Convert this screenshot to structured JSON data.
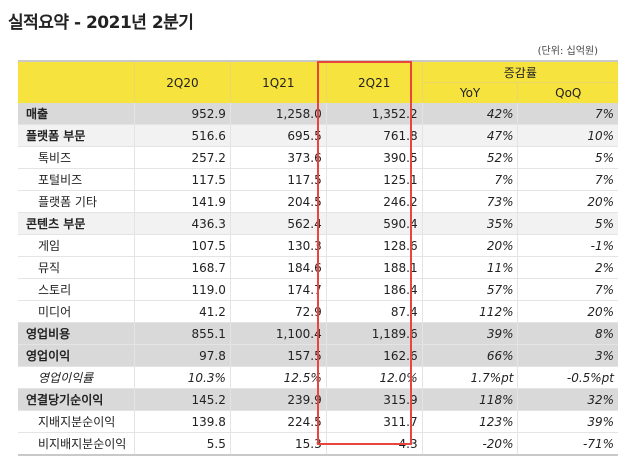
{
  "title": "실적요약 - 2021년 2분기",
  "unit": "(단위: 십억원)",
  "headers": {
    "c1": "2Q20",
    "c2": "1Q21",
    "c3": "2Q21",
    "growth": "증감률",
    "yoy": "YoY",
    "qoq": "QoQ"
  },
  "rows": [
    {
      "label": "매출",
      "v": [
        "952.9",
        "1,258.0",
        "1,352.2",
        "42%",
        "7%"
      ]
    },
    {
      "label": "플랫폼 부문",
      "v": [
        "516.6",
        "695.5",
        "761.8",
        "47%",
        "10%"
      ]
    },
    {
      "label": "톡비즈",
      "v": [
        "257.2",
        "373.6",
        "390.5",
        "52%",
        "5%"
      ]
    },
    {
      "label": "포털비즈",
      "v": [
        "117.5",
        "117.5",
        "125.1",
        "7%",
        "7%"
      ]
    },
    {
      "label": "플랫폼 기타",
      "v": [
        "141.9",
        "204.5",
        "246.2",
        "73%",
        "20%"
      ]
    },
    {
      "label": "콘텐츠 부문",
      "v": [
        "436.3",
        "562.4",
        "590.4",
        "35%",
        "5%"
      ]
    },
    {
      "label": "게임",
      "v": [
        "107.5",
        "130.3",
        "128.6",
        "20%",
        "-1%"
      ]
    },
    {
      "label": "뮤직",
      "v": [
        "168.7",
        "184.6",
        "188.1",
        "11%",
        "2%"
      ]
    },
    {
      "label": "스토리",
      "v": [
        "119.0",
        "174.7",
        "186.4",
        "57%",
        "7%"
      ]
    },
    {
      "label": "미디어",
      "v": [
        "41.2",
        "72.9",
        "87.4",
        "112%",
        "20%"
      ]
    },
    {
      "label": "영업비용",
      "v": [
        "855.1",
        "1,100.4",
        "1,189.6",
        "39%",
        "8%"
      ]
    },
    {
      "label": "영업이익",
      "v": [
        "97.8",
        "157.5",
        "162.6",
        "66%",
        "3%"
      ]
    },
    {
      "label": "영업이익률",
      "v": [
        "10.3%",
        "12.5%",
        "12.0%",
        "1.7%pt",
        "-0.5%pt"
      ]
    },
    {
      "label": "연결당기순이익",
      "v": [
        "145.2",
        "239.9",
        "315.9",
        "118%",
        "32%"
      ]
    },
    {
      "label": "지배지분순이익",
      "v": [
        "139.8",
        "224.5",
        "311.7",
        "123%",
        "39%"
      ]
    },
    {
      "label": "비지배지분순이익",
      "v": [
        "5.5",
        "15.3",
        "4.3",
        "-20%",
        "-71%"
      ]
    }
  ],
  "highlight_color": "#e8453c",
  "header_color": "#f7e33e"
}
